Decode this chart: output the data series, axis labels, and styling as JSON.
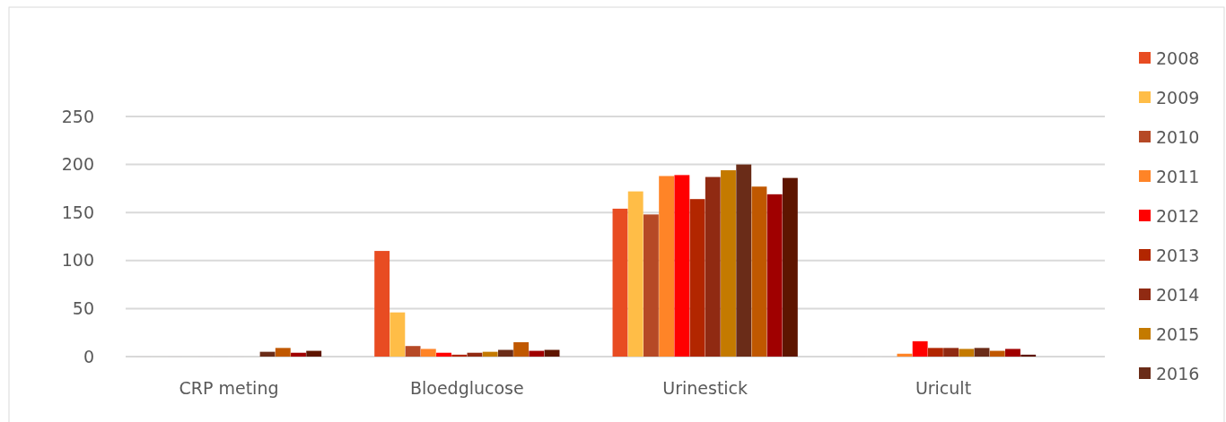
{
  "chart_data": {
    "type": "bar",
    "categories": [
      "CRP meting",
      "Bloedglucose",
      "Urinestick",
      "Uricult"
    ],
    "series": [
      {
        "name": "2008",
        "color": "#e84c22",
        "values": [
          0,
          110,
          154,
          0
        ]
      },
      {
        "name": "2009",
        "color": "#ffbd47",
        "values": [
          0,
          46,
          172,
          0
        ]
      },
      {
        "name": "2010",
        "color": "#b64926",
        "values": [
          0,
          11,
          148,
          0
        ]
      },
      {
        "name": "2011",
        "color": "#ff8427",
        "values": [
          0,
          8,
          188,
          3
        ]
      },
      {
        "name": "2012",
        "color": "#ff0000",
        "values": [
          0,
          4,
          189,
          16
        ]
      },
      {
        "name": "2013",
        "color": "#b22600",
        "values": [
          0,
          2,
          164,
          9
        ]
      },
      {
        "name": "2014",
        "color": "#902a12",
        "values": [
          0,
          4,
          187,
          9
        ]
      },
      {
        "name": "2015",
        "color": "#c47a00",
        "values": [
          0,
          5,
          194,
          8
        ]
      },
      {
        "name": "2016",
        "color": "#6a2c18",
        "values": [
          5,
          7,
          200,
          9
        ]
      },
      {
        "color": "#c05800",
        "values": [
          9,
          15,
          177,
          6
        ]
      },
      {
        "color": "#a00000",
        "values": [
          4,
          6,
          169,
          8
        ]
      },
      {
        "color": "#5e1500",
        "values": [
          6,
          7,
          186,
          2
        ]
      }
    ],
    "ylim": [
      0,
      250
    ],
    "yticks": [
      0,
      50,
      100,
      150,
      200,
      250
    ],
    "grid": "y",
    "legend": "right"
  }
}
